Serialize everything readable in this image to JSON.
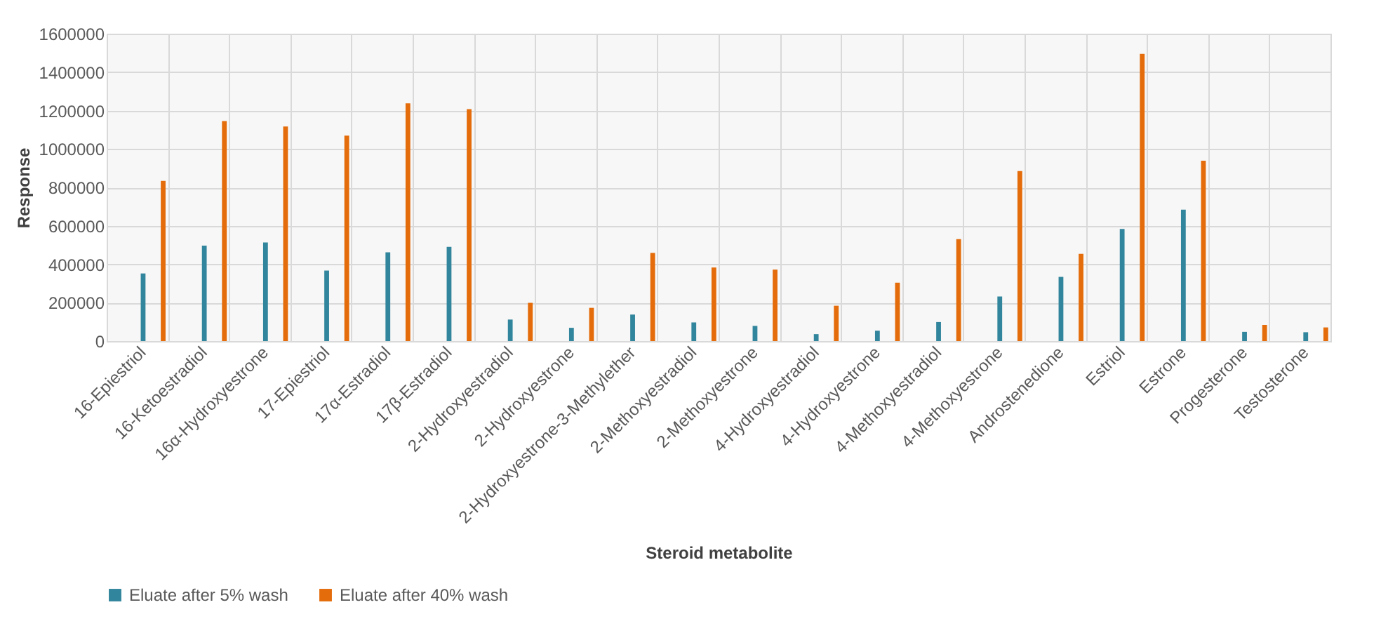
{
  "chart_data": {
    "type": "bar",
    "xlabel": "Steroid metabolite",
    "ylabel": "Response",
    "categories": [
      "16-Epiestriol",
      "16-Ketoestradiol",
      "16α-Hydroxyestrone",
      "17-Epiestriol",
      "17α-Estradiol",
      "17β-Estradiol",
      "2-Hydroxyestradiol",
      "2-Hydroxyestrone",
      "2-Hydroxyestrone-3-Methylether",
      "2-Methoxyestradiol",
      "2-Methoxyestrone",
      "4-Hydroxyestradiol",
      "4-Hydroxyestrone",
      "4-Methoxyestradiol",
      "4-Methoxyestrone",
      "Androstenedione",
      "Estriol",
      "Estrone",
      "Progesterone",
      "Testosterone"
    ],
    "series": [
      {
        "name": "Eluate after 5% wash",
        "color": "#31859c",
        "values": [
          352000,
          497000,
          513000,
          367000,
          462000,
          490000,
          112000,
          69000,
          138000,
          97000,
          79000,
          36000,
          54000,
          99000,
          232000,
          334000,
          584000,
          684000,
          48000,
          46000
        ]
      },
      {
        "name": "Eluate after 40% wash",
        "color": "#e46c0a",
        "values": [
          834000,
          1145000,
          1117000,
          1069000,
          1237000,
          1207000,
          199000,
          173000,
          459000,
          383000,
          372000,
          184000,
          304000,
          531000,
          885000,
          454000,
          1495000,
          939000,
          84000,
          71000
        ]
      }
    ],
    "ylim": [
      0,
      1600000
    ],
    "yticks": [
      0,
      200000,
      400000,
      600000,
      800000,
      1000000,
      1200000,
      1400000,
      1600000
    ],
    "grid": true,
    "legend": "bottom"
  }
}
